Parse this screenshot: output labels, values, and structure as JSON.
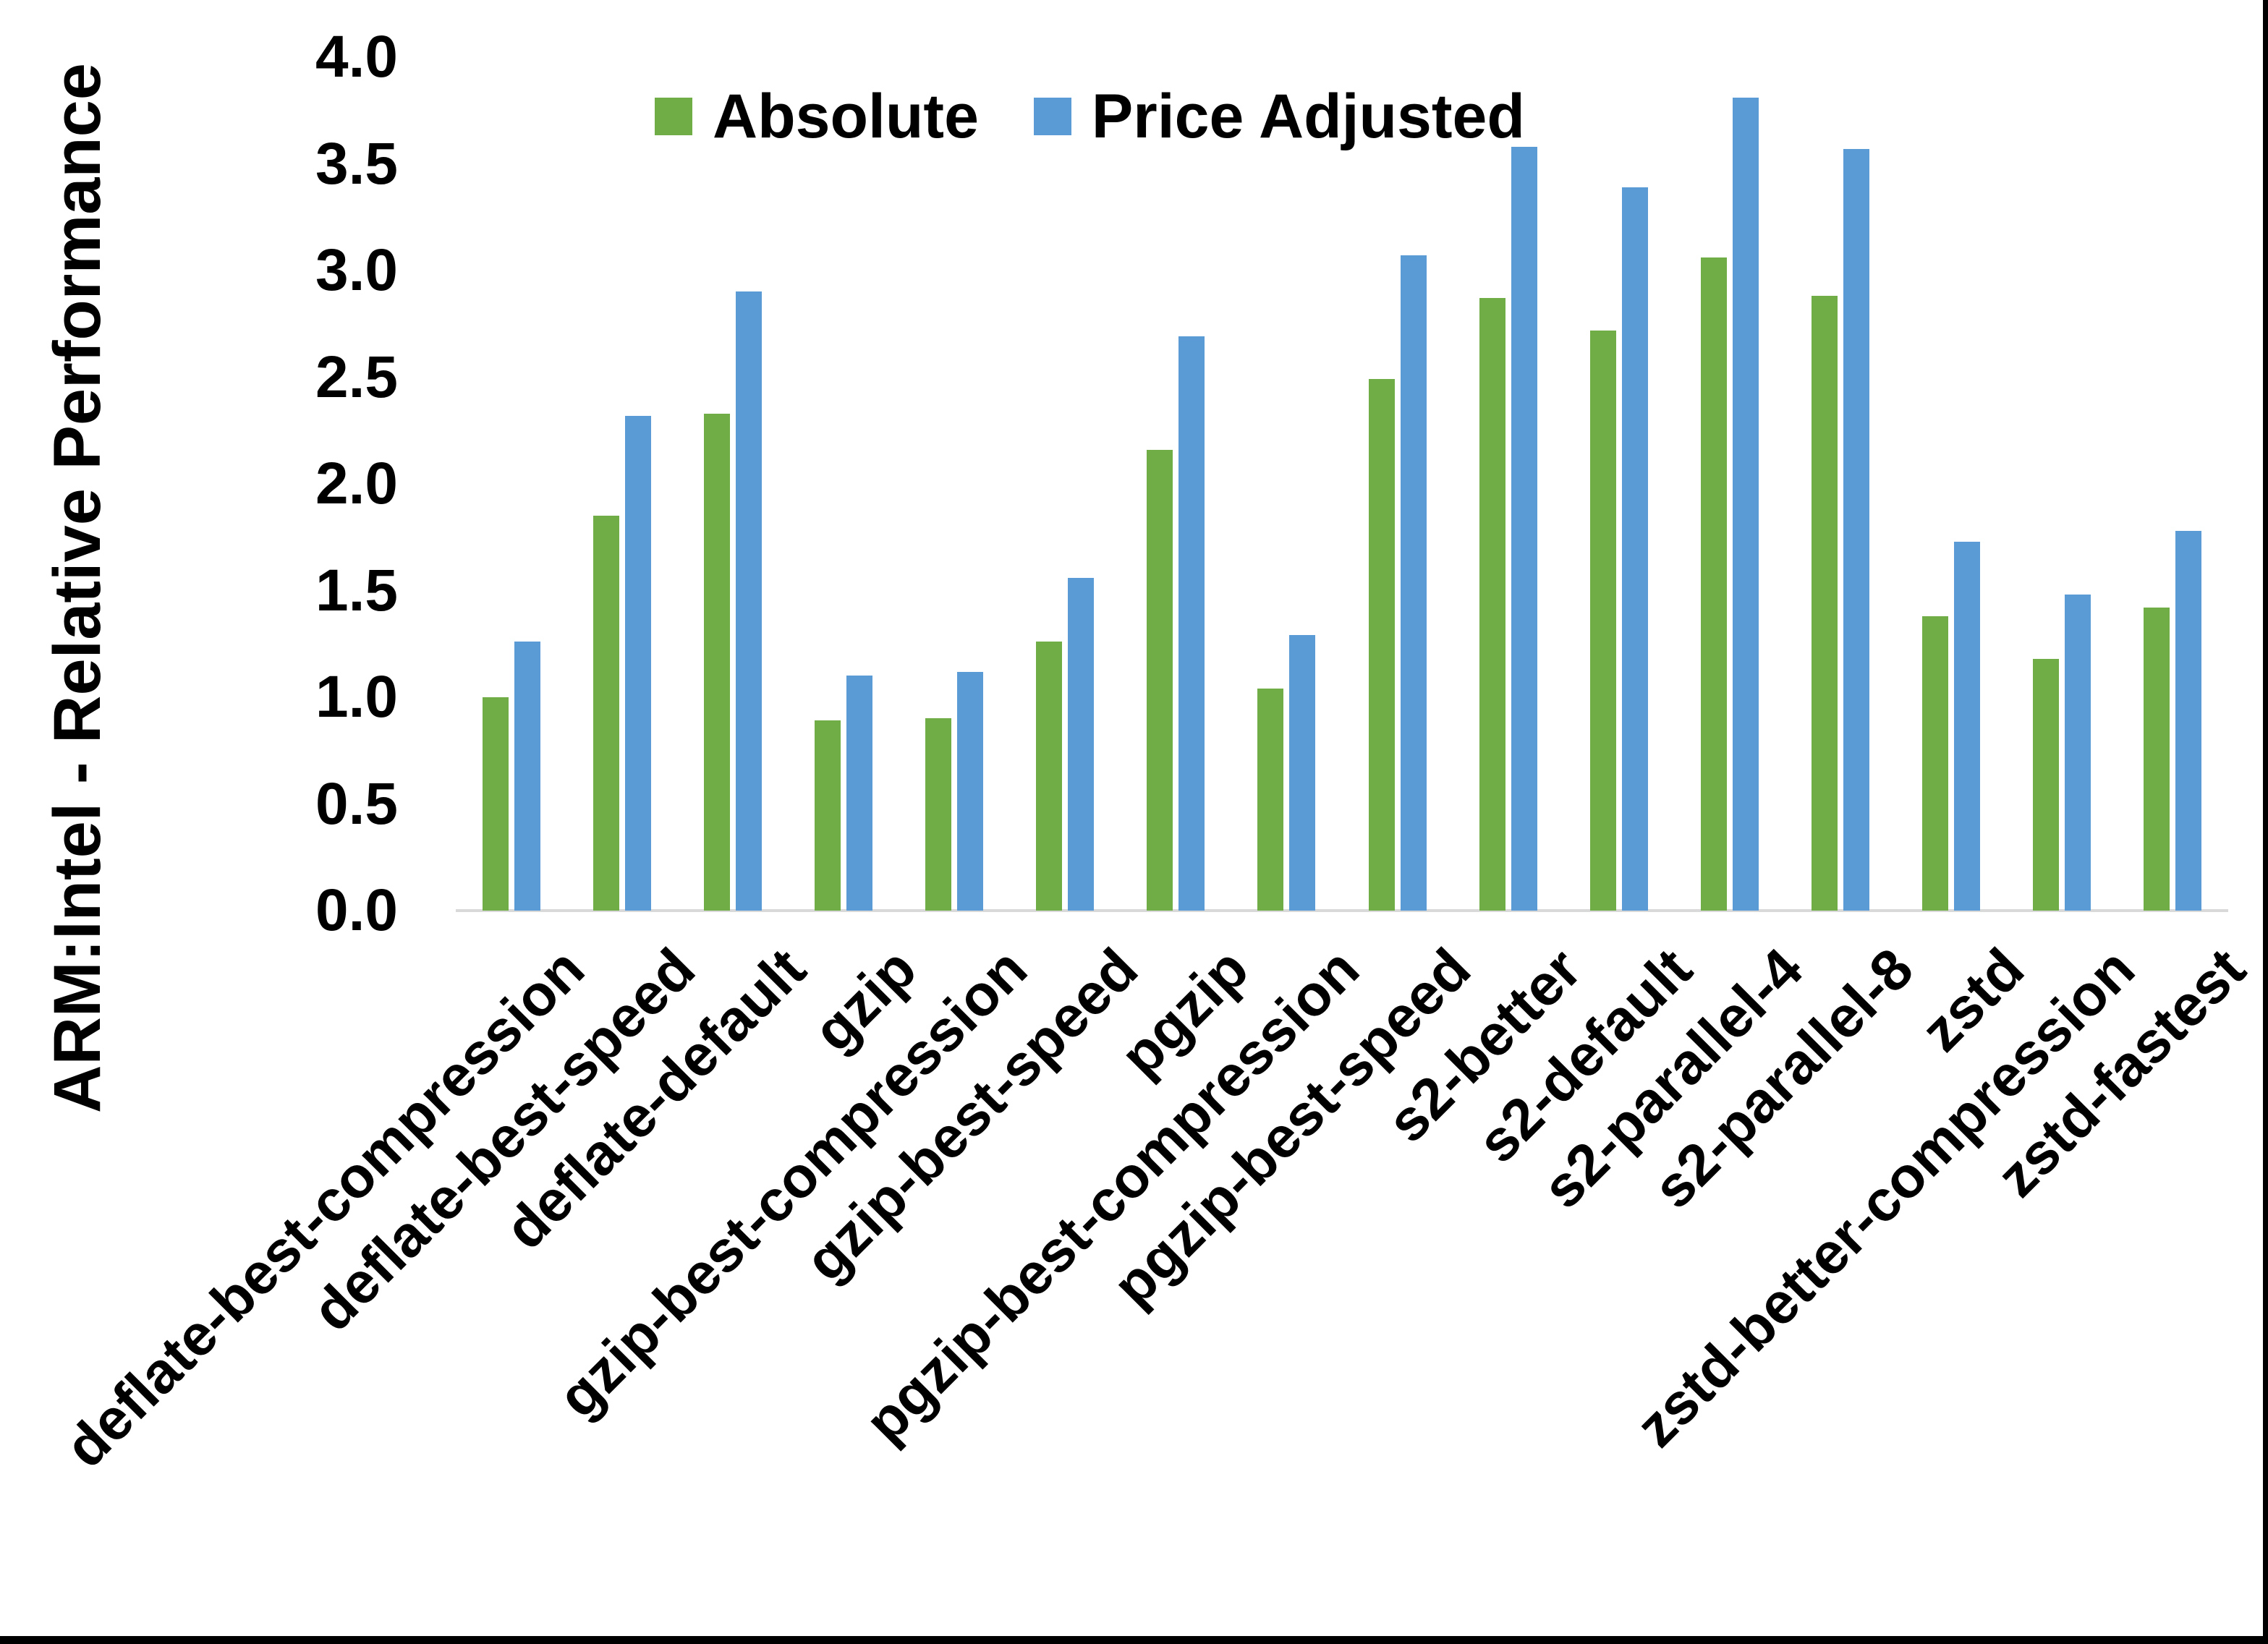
{
  "chart_data": {
    "type": "bar",
    "title": "",
    "xlabel": "",
    "ylabel": "ARM:Intel - Relative Performance",
    "ylim": [
      0.0,
      4.0
    ],
    "ytick_step": 0.5,
    "yticks": [
      "0.0",
      "0.5",
      "1.0",
      "1.5",
      "2.0",
      "2.5",
      "3.0",
      "3.5",
      "4.0"
    ],
    "grid": false,
    "legend_position": "top",
    "categories": [
      "deflate-best-compression",
      "deflate-best-speed",
      "deflate-default",
      "gzip",
      "gzip-best-compression",
      "gzip-best-speed",
      "pgzip",
      "pgzip-best-compression",
      "pgzip-best-speed",
      "s2-better",
      "s2-default",
      "s2-parallel-4",
      "s2-parallel-8",
      "zstd",
      "zstd-better-compression",
      "zstd-fastest"
    ],
    "series": [
      {
        "name": "Absolute",
        "color": "#70AD47",
        "values": [
          1.0,
          1.85,
          2.33,
          0.89,
          0.9,
          1.26,
          2.16,
          1.04,
          2.49,
          2.87,
          2.72,
          3.06,
          2.88,
          1.38,
          1.18,
          1.42
        ]
      },
      {
        "name": "Price Adjusted",
        "color": "#5B9BD5",
        "values": [
          1.26,
          2.32,
          2.9,
          1.1,
          1.12,
          1.56,
          2.69,
          1.29,
          3.07,
          3.58,
          3.39,
          3.81,
          3.57,
          1.73,
          1.48,
          1.78
        ]
      }
    ]
  },
  "colors": {
    "axis_line": "#D9D9D9",
    "text": "#000000",
    "frame_border": "#000000"
  }
}
